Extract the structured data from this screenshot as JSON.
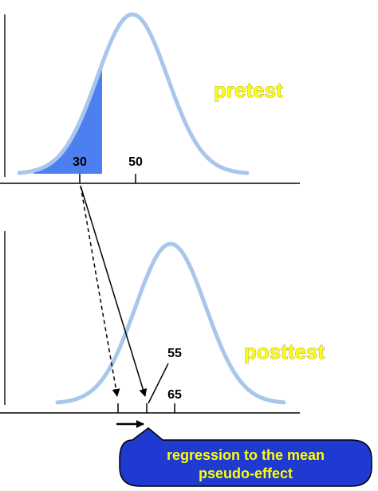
{
  "pretest": {
    "label": "pretest",
    "cutoff_label": "30",
    "mean_label": "50"
  },
  "posttest": {
    "label": "posttest",
    "observed_mean_label": "55",
    "mean_label": "65"
  },
  "callout": {
    "line1": "regression to the mean",
    "line2": "pseudo-effect"
  },
  "colors": {
    "curve": "#a9c6ec",
    "shade": "#4c7ff0",
    "label_fill": "#ffff00",
    "callout_bg": "#1e3ad0"
  }
}
